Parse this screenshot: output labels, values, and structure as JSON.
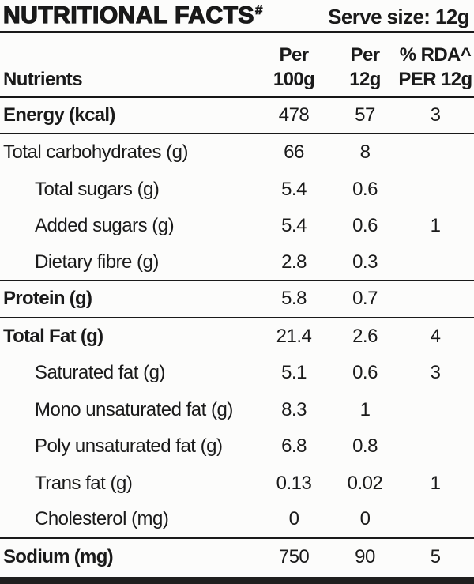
{
  "header": {
    "title": "NUTRITIONAL FACTS",
    "title_sup": "#",
    "serve_size": "Serve size: 12g"
  },
  "columns": {
    "nutrients": "Nutrients",
    "per100_l1": "Per",
    "per100_l2": "100g",
    "per12_l1": "Per",
    "per12_l2": "12g",
    "rda_l1": "% RDA^",
    "rda_l2": "PER 12g"
  },
  "rows": [
    {
      "label": "Energy (kcal)",
      "per_100g": "478",
      "per_12g": "57",
      "rda_per_12g": "3"
    },
    {
      "label": "Total carbohydrates (g)",
      "per_100g": "66",
      "per_12g": "8",
      "rda_per_12g": ""
    },
    {
      "label": "Total sugars (g)",
      "per_100g": "5.4",
      "per_12g": "0.6",
      "rda_per_12g": ""
    },
    {
      "label": "Added sugars (g)",
      "per_100g": "5.4",
      "per_12g": "0.6",
      "rda_per_12g": "1"
    },
    {
      "label": "Dietary fibre (g)",
      "per_100g": "2.8",
      "per_12g": "0.3",
      "rda_per_12g": ""
    },
    {
      "label": "Protein (g)",
      "per_100g": "5.8",
      "per_12g": "0.7",
      "rda_per_12g": ""
    },
    {
      "label": "Total Fat (g)",
      "per_100g": "21.4",
      "per_12g": "2.6",
      "rda_per_12g": "4"
    },
    {
      "label": "Saturated fat (g)",
      "per_100g": "5.1",
      "per_12g": "0.6",
      "rda_per_12g": "3"
    },
    {
      "label": "Mono unsaturated fat (g)",
      "per_100g": "8.3",
      "per_12g": "1",
      "rda_per_12g": ""
    },
    {
      "label": "Poly unsaturated fat (g)",
      "per_100g": "6.8",
      "per_12g": "0.8",
      "rda_per_12g": ""
    },
    {
      "label": "Trans fat (g)",
      "per_100g": "0.13",
      "per_12g": "0.02",
      "rda_per_12g": "1"
    },
    {
      "label": "Cholesterol (mg)",
      "per_100g": "0",
      "per_12g": "0",
      "rda_per_12g": ""
    },
    {
      "label": "Sodium (mg)",
      "per_100g": "750",
      "per_12g": "90",
      "rda_per_12g": "5"
    }
  ],
  "colors": {
    "text": "#1a1a1a",
    "background": "#fcfcfb",
    "rule": "#1a1a1a",
    "bottom_bar": "#1f1f1f"
  }
}
